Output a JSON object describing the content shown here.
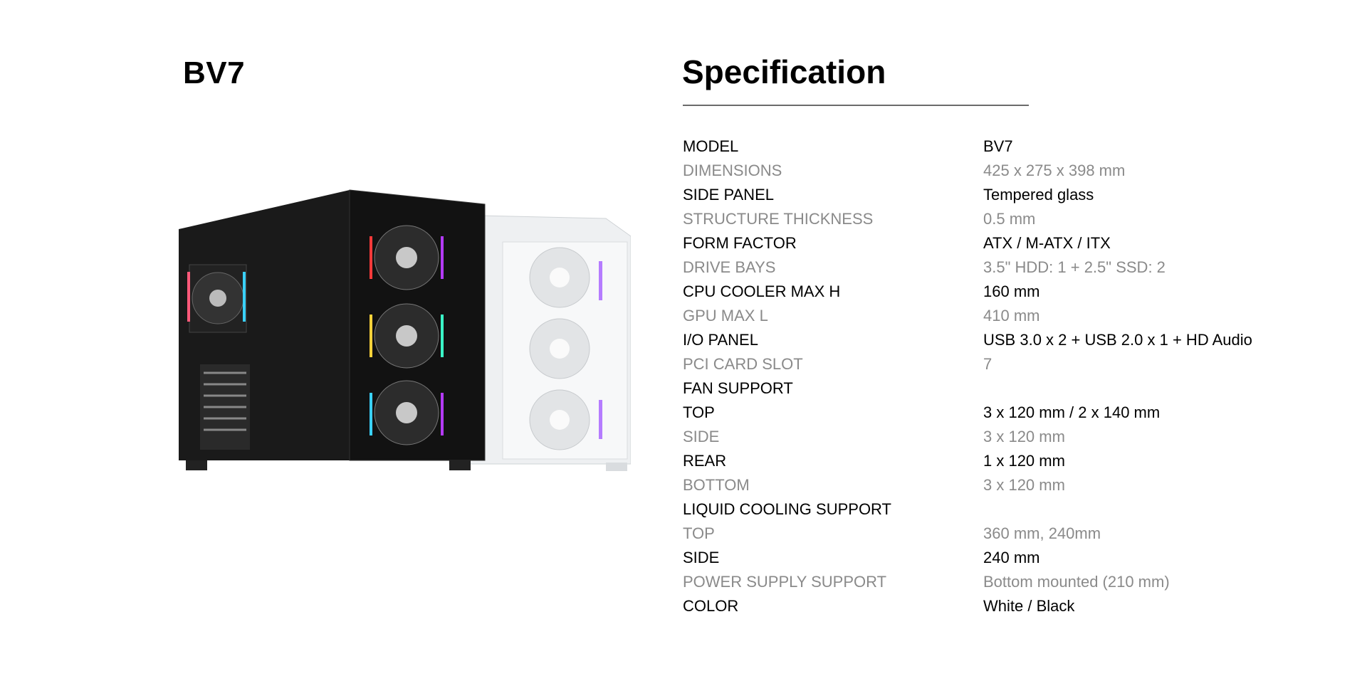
{
  "product": {
    "title": "BV7",
    "image_alt": "BV7 PC case in black and white"
  },
  "spec": {
    "title": "Specification",
    "rows": [
      {
        "key": "MODEL",
        "value": "BV7",
        "tone": "dark"
      },
      {
        "key": "DIMENSIONS",
        "value": "425 x 275 x 398 mm",
        "tone": "light"
      },
      {
        "key": "SIDE PANEL",
        "value": "Tempered glass",
        "tone": "dark"
      },
      {
        "key": "STRUCTURE THICKNESS",
        "value": "0.5 mm",
        "tone": "light"
      },
      {
        "key": "FORM FACTOR",
        "value": "ATX / M-ATX / ITX",
        "tone": "dark"
      },
      {
        "key": "DRIVE BAYS",
        "value": "3.5\" HDD: 1 + 2.5\" SSD: 2",
        "tone": "light"
      },
      {
        "key": "CPU COOLER MAX H",
        "value": "160 mm",
        "tone": "dark"
      },
      {
        "key": "GPU MAX L",
        "value": "410 mm",
        "tone": "light"
      },
      {
        "key": "I/O PANEL",
        "value": "USB 3.0 x 2 + USB 2.0 x 1 +  HD Audio",
        "tone": "dark"
      },
      {
        "key": "PCI CARD SLOT",
        "value": "7",
        "tone": "light"
      },
      {
        "key": "FAN SUPPORT",
        "value": "",
        "tone": "dark"
      },
      {
        "key": "TOP",
        "value": "3 x 120 mm / 2 x 140 mm",
        "tone": "dark"
      },
      {
        "key": "SIDE",
        "value": "3 x 120 mm",
        "tone": "light"
      },
      {
        "key": "REAR",
        "value": "1 x 120 mm",
        "tone": "dark"
      },
      {
        "key": "BOTTOM",
        "value": "3 x 120 mm",
        "tone": "light"
      },
      {
        "key": "LIQUID COOLING SUPPORT",
        "value": "",
        "tone": "dark"
      },
      {
        "key": "TOP",
        "value": "360 mm, 240mm",
        "tone": "light"
      },
      {
        "key": "SIDE",
        "value": "240 mm",
        "tone": "dark"
      },
      {
        "key": "POWER SUPPLY SUPPORT",
        "value": "Bottom mounted (210 mm)",
        "tone": "light"
      },
      {
        "key": "COLOR",
        "value": "White / Black",
        "tone": "dark"
      }
    ]
  },
  "colors": {
    "dark_text": "#000000",
    "light_text": "#8a8a8a",
    "rule": "#6b6b6b"
  }
}
